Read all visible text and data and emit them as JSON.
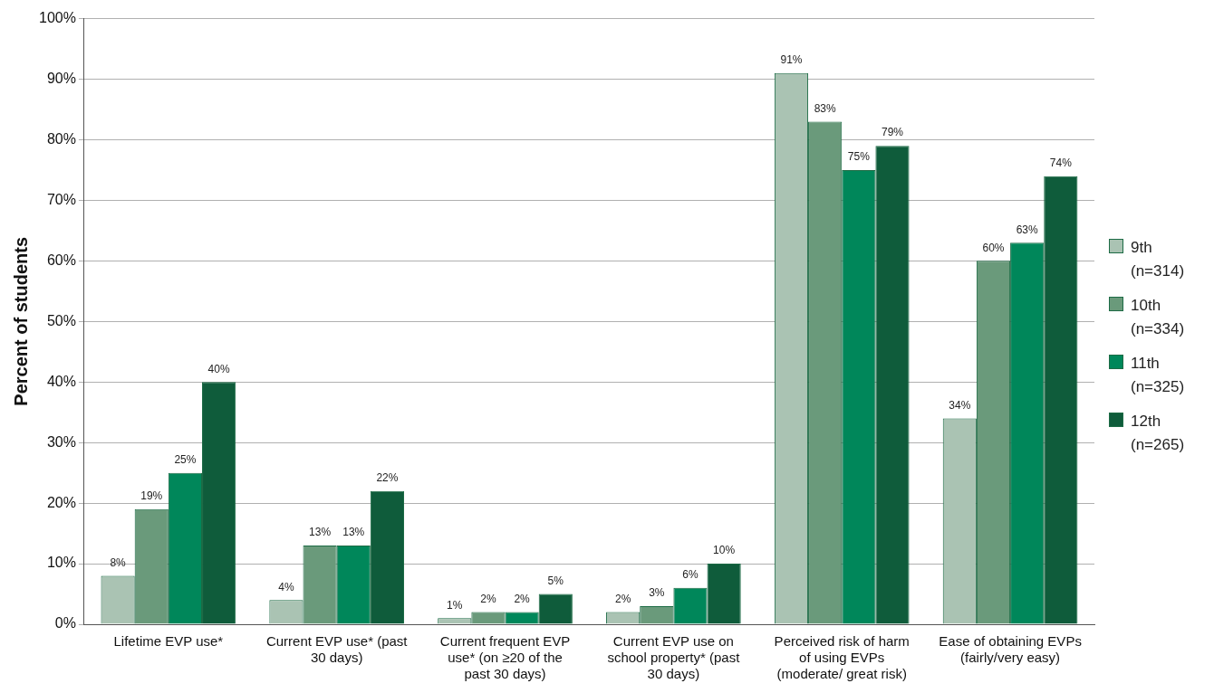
{
  "chart_data": {
    "type": "bar",
    "ylabel": "Percent of students",
    "categories": [
      "Lifetime EVP use*",
      "Current EVP use* (past 30 days)",
      "Current frequent EVP use* (on ≥20 of the past 30 days)",
      "Current EVP use on school property* (past 30 days)",
      "Perceived risk of harm of using EVPs (moderate/ great risk)",
      "Ease of obtaining EVPs (fairly/very easy)"
    ],
    "series": [
      {
        "name": "9th (n=314)",
        "color": "#aac3b3",
        "values": [
          8,
          4,
          1,
          2,
          91,
          34
        ],
        "value_labels": [
          "8%",
          "4%",
          "1%",
          "2%",
          "91%",
          "34%"
        ]
      },
      {
        "name": "10th (n=334)",
        "color": "#6a9a7b",
        "values": [
          19,
          13,
          2,
          3,
          83,
          60
        ],
        "value_labels": [
          "19%",
          "13%",
          "2%",
          "3%",
          "83%",
          "60%"
        ]
      },
      {
        "name": "11th (n=325)",
        "color": "#00875a",
        "values": [
          25,
          13,
          2,
          6,
          75,
          63
        ],
        "value_labels": [
          "25%",
          "13%",
          "2%",
          "6%",
          "75%",
          "63%"
        ]
      },
      {
        "name": "12th (n=265)",
        "color": "#0f5c3b",
        "values": [
          40,
          22,
          5,
          10,
          79,
          74
        ],
        "value_labels": [
          "40%",
          "22%",
          "5%",
          "10%",
          "79%",
          "74%"
        ]
      }
    ],
    "ylim": [
      0,
      100
    ],
    "yticks": [
      {
        "value": 0,
        "label": "0%"
      },
      {
        "value": 10,
        "label": "10%"
      },
      {
        "value": 20,
        "label": "20%"
      },
      {
        "value": 30,
        "label": "30%"
      },
      {
        "value": 40,
        "label": "40%"
      },
      {
        "value": 50,
        "label": "50%"
      },
      {
        "value": 60,
        "label": "60%"
      },
      {
        "value": 70,
        "label": "70%"
      },
      {
        "value": 80,
        "label": "80%"
      },
      {
        "value": 90,
        "label": "90%"
      },
      {
        "value": 100,
        "label": "100%"
      }
    ],
    "grid": "y",
    "legend": "right"
  }
}
